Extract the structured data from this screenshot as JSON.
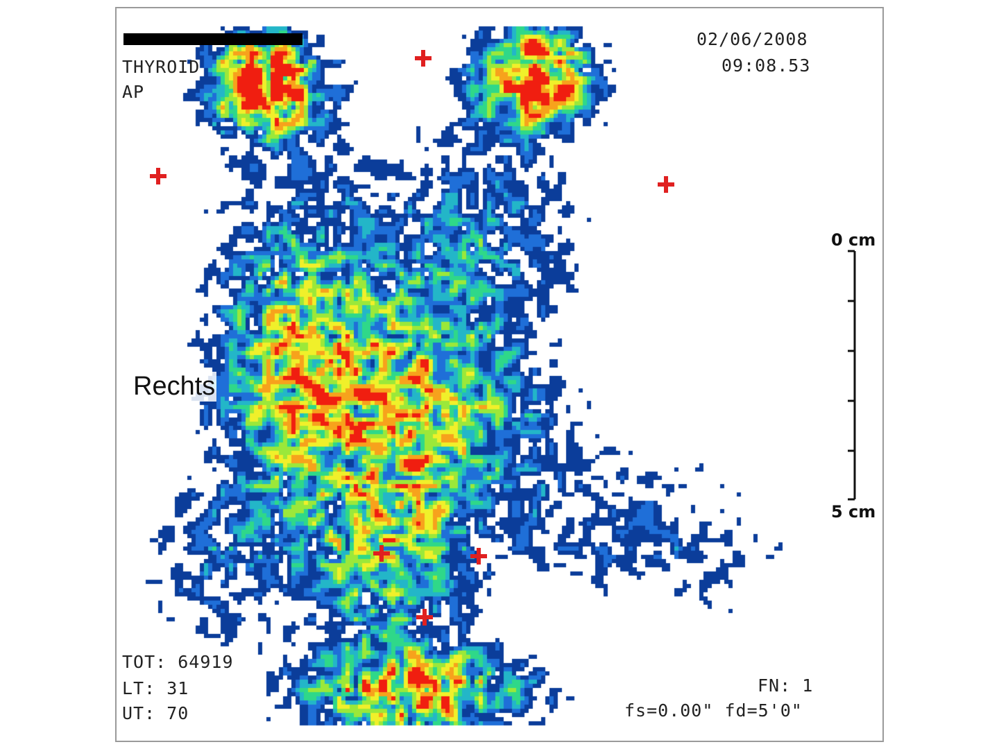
{
  "header": {
    "date": "02/06/2008",
    "time": "09:08.53",
    "study": "THYROID",
    "view": "AP"
  },
  "orientation_label": "Rechts",
  "scale": {
    "top_label": "0 cm",
    "bottom_label": "5 cm"
  },
  "footer": {
    "tot": "TOT: 64919",
    "lt": "LT: 31",
    "ut": "UT: 70",
    "fn": "FN: 1",
    "fs_fd": "fs=0.00\" fd=5'0\""
  },
  "colors": {
    "marker": "#e02020",
    "low": "#1040a0",
    "mid": "#20d080",
    "high": "#f01010"
  },
  "icons": [
    "marker-cross-icon"
  ]
}
